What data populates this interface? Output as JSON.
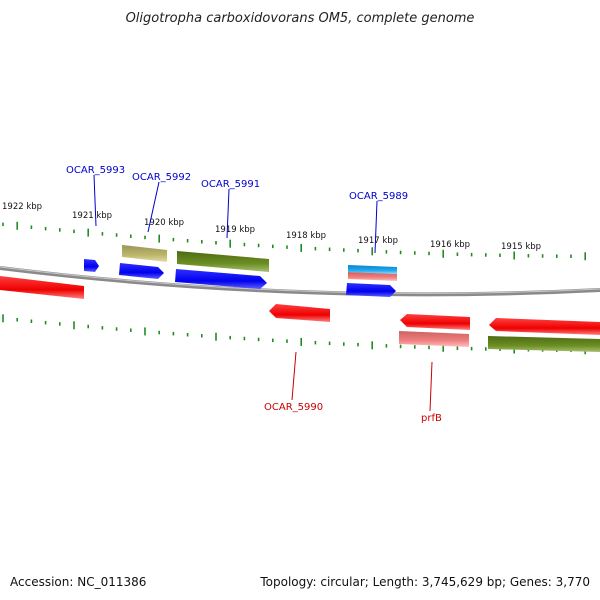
{
  "title": "Oligotropha carboxidovorans OM5, complete genome",
  "footer": {
    "accession": "Accession: NC_011386",
    "topology": "Topology: circular; Length: 3,745,629 bp; Genes: 3,770"
  },
  "scale_labels": [
    "1922 kbp",
    "1921 kbp",
    "1920 kbp",
    "1919 kbp",
    "1918 kbp",
    "1917 kbp",
    "1916 kbp",
    "1915 kbp"
  ],
  "gene_labels": [
    {
      "text": "OCAR_5993",
      "color": "#0000cc"
    },
    {
      "text": "OCAR_5992",
      "color": "#0000cc"
    },
    {
      "text": "OCAR_5991",
      "color": "#0000cc"
    },
    {
      "text": "OCAR_5989",
      "color": "#0000cc"
    },
    {
      "text": "OCAR_5990",
      "color": "#cc0000"
    },
    {
      "text": "prfB",
      "color": "#cc0000"
    }
  ],
  "colors": {
    "blue": "#0000ee",
    "red": "#ee0000",
    "olive": "#6b8e23",
    "khaki": "#bdb76b",
    "pink": "#f08080",
    "cyan": "#1eaaee",
    "tick": "#228b22",
    "backbone": "#888888"
  }
}
